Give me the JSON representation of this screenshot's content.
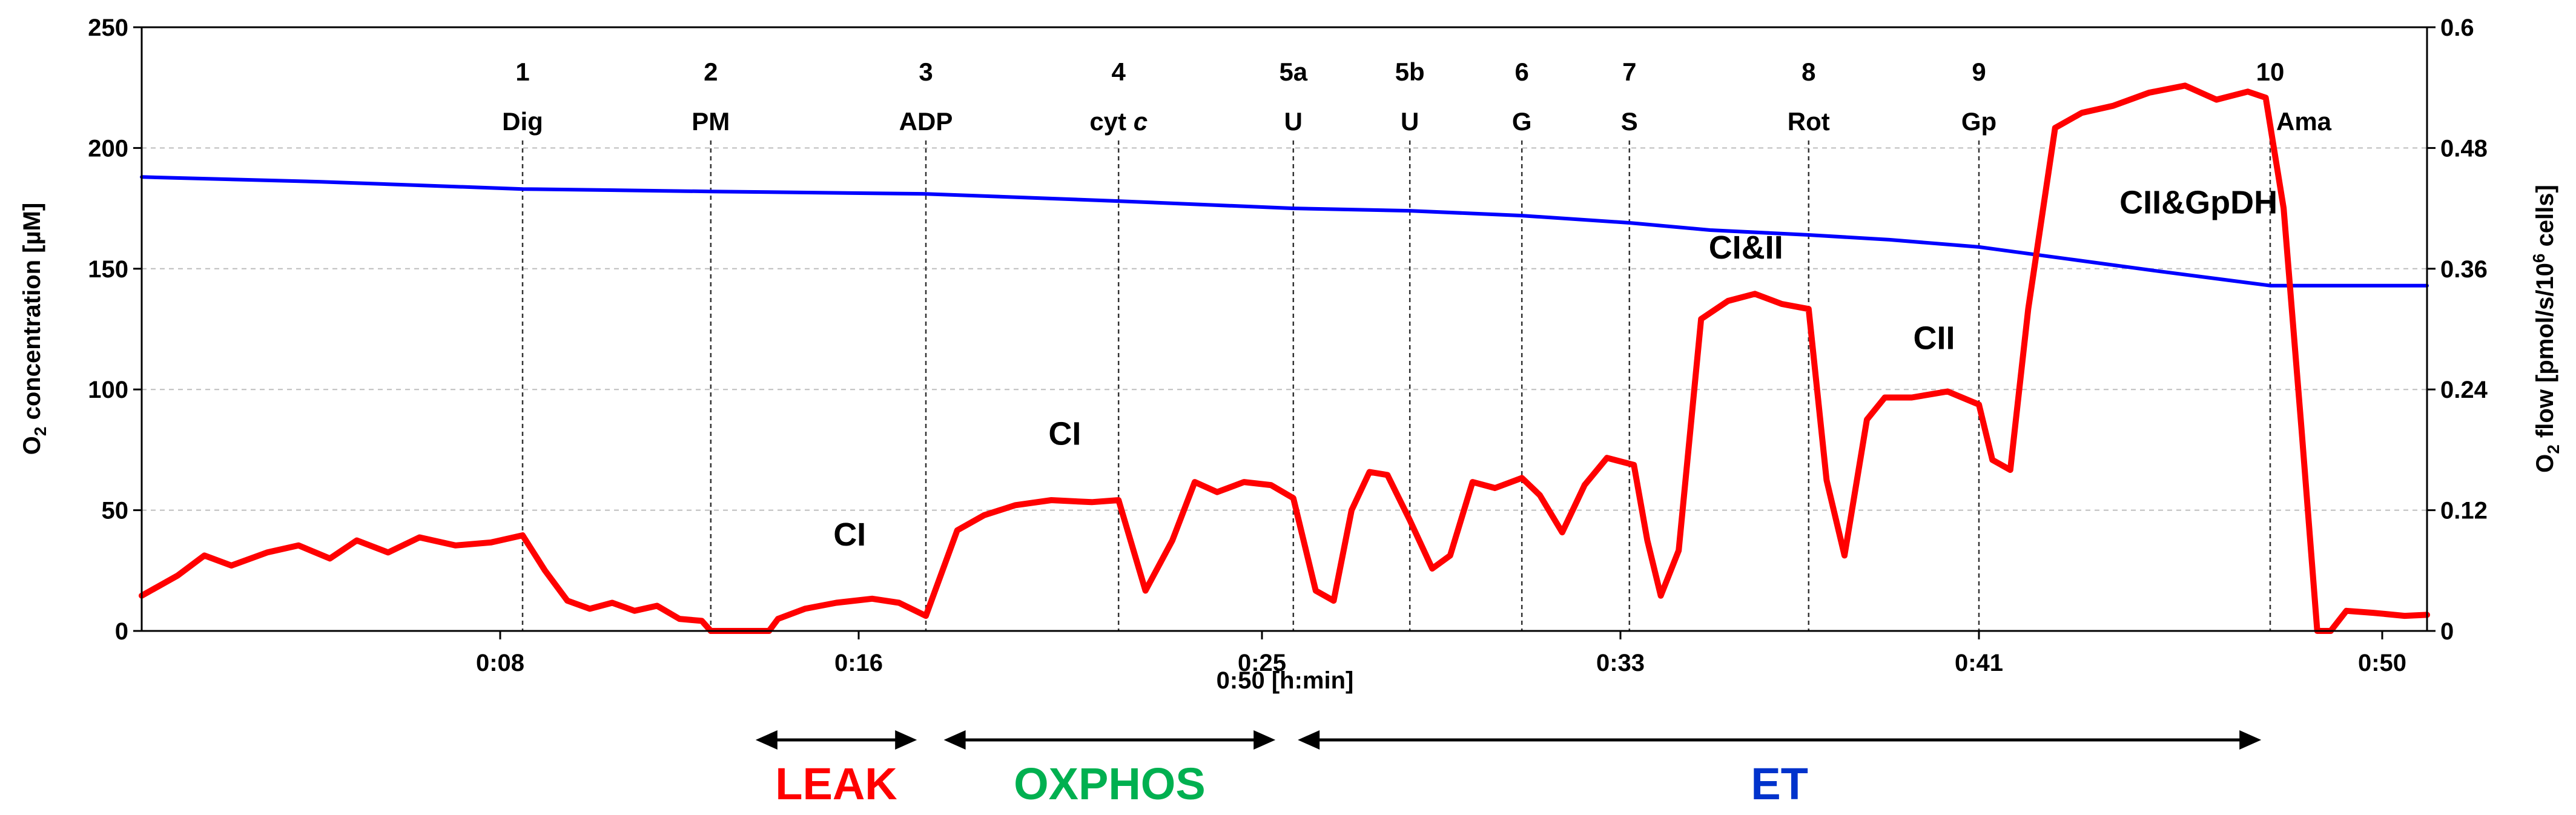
{
  "chart_data": {
    "type": "line",
    "xlabel": "0:50 [h:min]",
    "x_range_min": [
      0,
      51
    ],
    "x_ticks": [
      {
        "t": 8,
        "label": "0:08"
      },
      {
        "t": 16,
        "label": "0:16"
      },
      {
        "t": 25,
        "label": "0:25"
      },
      {
        "t": 33,
        "label": "0:33"
      },
      {
        "t": 41,
        "label": "0:41"
      },
      {
        "t": 50,
        "label": "0:50"
      }
    ],
    "y_left": {
      "label_main": "O",
      "label_sub": "2",
      "label_rest": " concentration [",
      "label_mu": "µM",
      "label_end": "]",
      "ylim": [
        0,
        250
      ],
      "ticks": [
        "0",
        "50",
        "100",
        "150",
        "200",
        "250"
      ]
    },
    "y_right": {
      "label_main": "O",
      "label_sub": "2",
      "label_rest": " flow [pmol/s/10",
      "label_sup": "6",
      "label_end": " cells]",
      "ylim": [
        0,
        0.6
      ],
      "ticks": [
        "0",
        "0.12",
        "0.24",
        "0.36",
        "0.48",
        "0.6"
      ]
    },
    "grid": "horizontal dashed",
    "events": [
      {
        "t": 8.5,
        "num": "1",
        "label": "Dig"
      },
      {
        "t": 12.7,
        "num": "2",
        "label": "PM"
      },
      {
        "t": 17.5,
        "num": "3",
        "label": "ADP"
      },
      {
        "t": 21.8,
        "num": "4",
        "label": "cyt ",
        "label_italic": "c"
      },
      {
        "t": 25.7,
        "num": "5a",
        "label": "U"
      },
      {
        "t": 28.3,
        "num": "5b",
        "label": "U"
      },
      {
        "t": 30.8,
        "num": "6",
        "label": "G"
      },
      {
        "t": 33.2,
        "num": "7",
        "label": "S"
      },
      {
        "t": 37.2,
        "num": "8",
        "label": "Rot"
      },
      {
        "t": 41.0,
        "num": "9",
        "label": "Gp"
      },
      {
        "t": 47.5,
        "num": "10",
        "label": "Ama"
      }
    ],
    "annotations": [
      {
        "text": "CI",
        "t": 15.8,
        "flow": 0.085
      },
      {
        "text": "CI",
        "t": 20.6,
        "flow": 0.185
      },
      {
        "text": "CI&II",
        "t": 35.8,
        "flow": 0.37
      },
      {
        "text": "CII",
        "t": 40.0,
        "flow": 0.28
      },
      {
        "text": "CII&GpDH",
        "t": 45.9,
        "flow": 0.415
      }
    ],
    "phases": [
      {
        "name": "LEAK",
        "t_start": 13.7,
        "t_end": 17.3,
        "color": "#ff0000"
      },
      {
        "name": "OXPHOS",
        "t_start": 17.9,
        "t_end": 25.3,
        "color": "#00b050"
      },
      {
        "name": "ET",
        "t_start": 25.8,
        "t_end": 47.3,
        "color": "#0033cc"
      }
    ],
    "series": [
      {
        "color": "#0000ff",
        "axis": "left",
        "points": [
          [
            0,
            188
          ],
          [
            4,
            186
          ],
          [
            8.5,
            183
          ],
          [
            12.7,
            182
          ],
          [
            17.5,
            181
          ],
          [
            21.8,
            178
          ],
          [
            25.7,
            175
          ],
          [
            28.3,
            174
          ],
          [
            30.8,
            172
          ],
          [
            33.2,
            169
          ],
          [
            35,
            166
          ],
          [
            37.2,
            164
          ],
          [
            39,
            162
          ],
          [
            41,
            159
          ],
          [
            43,
            154
          ],
          [
            45,
            149
          ],
          [
            47.5,
            143
          ],
          [
            51,
            143
          ]
        ]
      },
      {
        "color": "#ff0000",
        "axis": "right",
        "points": [
          [
            0,
            0.035
          ],
          [
            0.8,
            0.055
          ],
          [
            1.4,
            0.075
          ],
          [
            2.0,
            0.065
          ],
          [
            2.8,
            0.078
          ],
          [
            3.5,
            0.085
          ],
          [
            4.2,
            0.072
          ],
          [
            4.8,
            0.09
          ],
          [
            5.5,
            0.078
          ],
          [
            6.2,
            0.093
          ],
          [
            7.0,
            0.085
          ],
          [
            7.8,
            0.088
          ],
          [
            8.5,
            0.095
          ],
          [
            9.0,
            0.06
          ],
          [
            9.5,
            0.03
          ],
          [
            10.0,
            0.022
          ],
          [
            10.5,
            0.028
          ],
          [
            11.0,
            0.02
          ],
          [
            11.5,
            0.025
          ],
          [
            12.0,
            0.012
          ],
          [
            12.5,
            0.01
          ],
          [
            12.7,
            0.0
          ],
          [
            14.0,
            0.0
          ],
          [
            14.2,
            0.012
          ],
          [
            14.8,
            0.022
          ],
          [
            15.5,
            0.028
          ],
          [
            16.3,
            0.032
          ],
          [
            16.9,
            0.028
          ],
          [
            17.5,
            0.015
          ],
          [
            18.2,
            0.1
          ],
          [
            18.8,
            0.115
          ],
          [
            19.5,
            0.125
          ],
          [
            20.3,
            0.13
          ],
          [
            21.2,
            0.128
          ],
          [
            21.8,
            0.13
          ],
          [
            22.4,
            0.04
          ],
          [
            23.0,
            0.09
          ],
          [
            23.5,
            0.148
          ],
          [
            24.0,
            0.138
          ],
          [
            24.6,
            0.148
          ],
          [
            25.2,
            0.145
          ],
          [
            25.7,
            0.132
          ],
          [
            26.2,
            0.04
          ],
          [
            26.6,
            0.03
          ],
          [
            27.0,
            0.12
          ],
          [
            27.4,
            0.158
          ],
          [
            27.8,
            0.155
          ],
          [
            28.3,
            0.11
          ],
          [
            28.8,
            0.062
          ],
          [
            29.2,
            0.075
          ],
          [
            29.7,
            0.148
          ],
          [
            30.2,
            0.142
          ],
          [
            30.8,
            0.152
          ],
          [
            31.2,
            0.135
          ],
          [
            31.7,
            0.098
          ],
          [
            32.2,
            0.145
          ],
          [
            32.7,
            0.172
          ],
          [
            33.3,
            0.165
          ],
          [
            33.6,
            0.09
          ],
          [
            33.9,
            0.035
          ],
          [
            34.3,
            0.08
          ],
          [
            34.8,
            0.31
          ],
          [
            35.4,
            0.328
          ],
          [
            36.0,
            0.335
          ],
          [
            36.6,
            0.325
          ],
          [
            37.2,
            0.32
          ],
          [
            37.6,
            0.15
          ],
          [
            38.0,
            0.075
          ],
          [
            38.5,
            0.21
          ],
          [
            38.9,
            0.232
          ],
          [
            39.5,
            0.232
          ],
          [
            40.3,
            0.238
          ],
          [
            41.0,
            0.225
          ],
          [
            41.3,
            0.17
          ],
          [
            41.7,
            0.16
          ],
          [
            42.1,
            0.32
          ],
          [
            42.7,
            0.5
          ],
          [
            43.3,
            0.515
          ],
          [
            44.0,
            0.522
          ],
          [
            44.8,
            0.535
          ],
          [
            45.6,
            0.542
          ],
          [
            46.3,
            0.528
          ],
          [
            47.0,
            0.536
          ],
          [
            47.4,
            0.53
          ],
          [
            47.8,
            0.42
          ],
          [
            48.2,
            0.2
          ],
          [
            48.55,
            0.0
          ],
          [
            48.85,
            0.0
          ],
          [
            49.2,
            0.02
          ],
          [
            49.8,
            0.018
          ],
          [
            50.5,
            0.015
          ],
          [
            51.0,
            0.016
          ]
        ]
      }
    ]
  }
}
